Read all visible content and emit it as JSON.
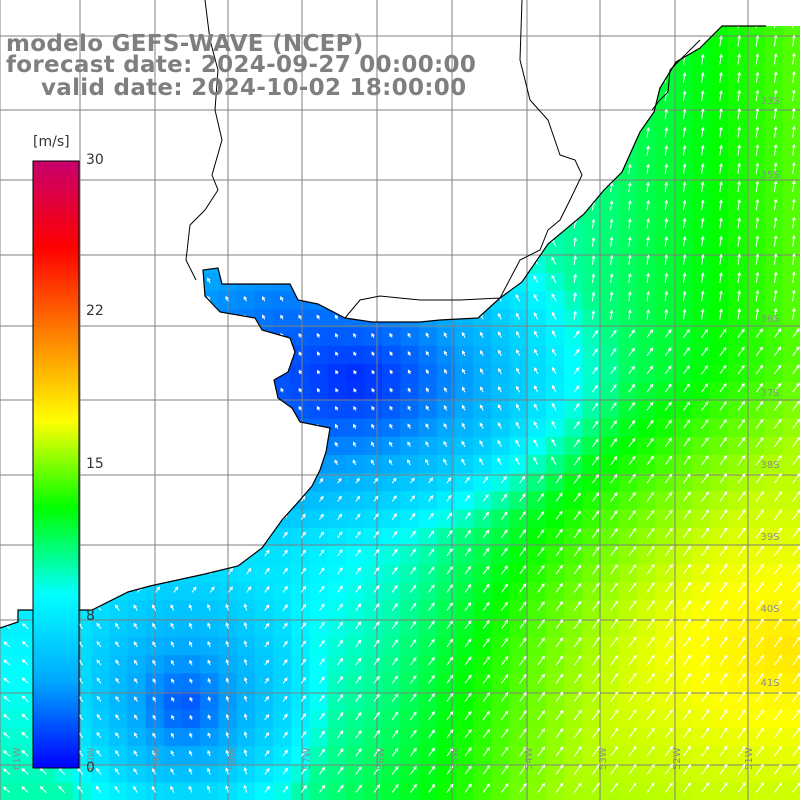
{
  "title": {
    "line1": "modelo GEFS-WAVE (NCEP)",
    "line2": "forecast date: 2024-09-27 00:00:00",
    "line3": "valid date: 2024-10-02 18:00:00"
  },
  "colorbar": {
    "unit": "[m/s]",
    "min": 0,
    "max": 30,
    "ticks": [
      {
        "value": 30,
        "label": "30"
      },
      {
        "value": 22,
        "label": "22"
      },
      {
        "value": 15,
        "label": "15"
      },
      {
        "value": 8,
        "label": "8"
      },
      {
        "value": 0,
        "label": "0"
      }
    ],
    "colors": [
      "#0000ff",
      "#00a8ff",
      "#00ffff",
      "#00ff00",
      "#ffff00",
      "#ff8000",
      "#ff0000",
      "#c8006e"
    ]
  },
  "lat_labels": [
    "33S",
    "35S",
    "36S",
    "37S",
    "38S",
    "39S",
    "40S",
    "41S"
  ],
  "lon_labels": [
    "61W",
    "60W",
    "59W",
    "58W",
    "57W",
    "56W",
    "55W",
    "54W",
    "53W",
    "52W",
    "51W"
  ],
  "wind_field": {
    "variable": "wind speed",
    "range_shown_ms": [
      0,
      19
    ],
    "centers": [
      {
        "zone": "Rio de la Plata estuary",
        "speed_ms": 1
      },
      {
        "zone": "southwest corner",
        "speed_ms": 2
      },
      {
        "zone": "southeast open ocean",
        "speed_ms": 18
      }
    ]
  }
}
